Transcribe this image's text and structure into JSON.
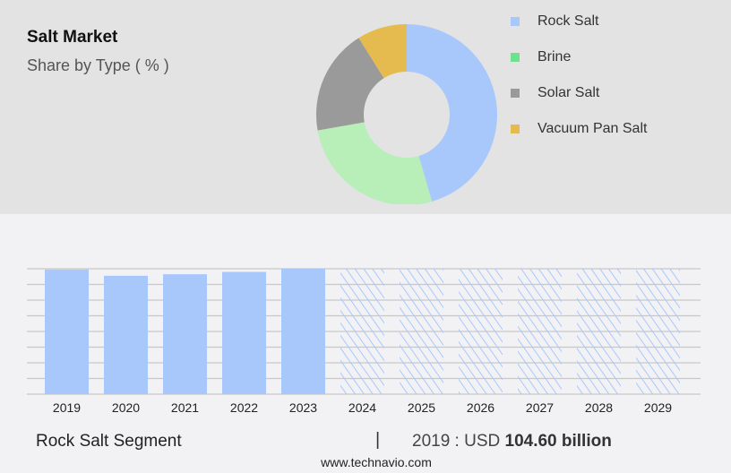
{
  "header": {
    "title": "Salt Market",
    "subtitle": "Share by Type ( % )"
  },
  "colors": {
    "rock": "#a8c8fc",
    "brine": "#b8eeb8",
    "brine_legend": "#6fe08f",
    "solar": "#9a9a9a",
    "vacuum": "#e5bb50"
  },
  "chart_data": [
    {
      "type": "pie",
      "variant": "donut",
      "title": "Salt Market Share by Type ( % )",
      "legend": [
        "Rock Salt",
        "Brine",
        "Solar Salt",
        "Vacuum Pan Salt"
      ],
      "legend_position": "right",
      "values": [
        45.5,
        26.7,
        18.9,
        8.9
      ]
    },
    {
      "type": "bar",
      "categories": [
        "2019",
        "2020",
        "2021",
        "2022",
        "2023",
        "2024",
        "2025",
        "2026",
        "2027",
        "2028",
        "2029"
      ],
      "values": [
        7.95,
        7.55,
        7.65,
        7.8,
        8.0,
        8.0,
        8.0,
        8.0,
        8.0,
        8.0,
        8.0
      ],
      "forecast": [
        false,
        false,
        false,
        false,
        false,
        true,
        true,
        true,
        true,
        true,
        true
      ],
      "ylim": [
        0,
        8
      ],
      "grid": true,
      "xlabel": "",
      "ylabel": ""
    }
  ],
  "footer": {
    "segment": "Rock Salt Segment",
    "separator": "|",
    "year_label": "2019 : USD ",
    "value": "104.60 billion",
    "url": "www.technavio.com"
  }
}
